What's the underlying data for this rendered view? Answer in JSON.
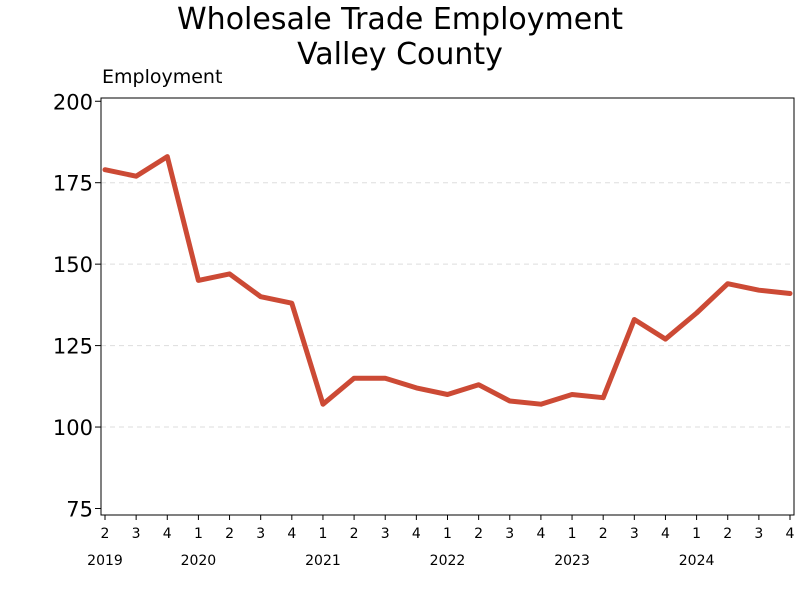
{
  "chart_data": {
    "type": "line",
    "title": "Wholesale Trade Employment",
    "subtitle": "Valley County",
    "ylabel": "Employment",
    "xlabel": "",
    "ylim": [
      73,
      201
    ],
    "yticks": [
      75,
      100,
      125,
      150,
      175,
      200
    ],
    "grid": "horizontal dashed",
    "x": [
      "2019 Q2",
      "2019 Q3",
      "2019 Q4",
      "2020 Q1",
      "2020 Q2",
      "2020 Q3",
      "2020 Q4",
      "2021 Q1",
      "2021 Q2",
      "2021 Q3",
      "2021 Q4",
      "2022 Q1",
      "2022 Q2",
      "2022 Q3",
      "2022 Q4",
      "2023 Q1",
      "2023 Q2",
      "2023 Q3",
      "2023 Q4",
      "2024 Q1",
      "2024 Q2",
      "2024 Q3",
      "2024 Q4"
    ],
    "quarter_labels": [
      "2",
      "3",
      "4",
      "1",
      "2",
      "3",
      "4",
      "1",
      "2",
      "3",
      "4",
      "1",
      "2",
      "3",
      "4",
      "1",
      "2",
      "3",
      "4",
      "1",
      "2",
      "3",
      "4"
    ],
    "year_labels": [
      {
        "label": "2019",
        "quarter_index": 0
      },
      {
        "label": "2020",
        "quarter_index": 3
      },
      {
        "label": "2021",
        "quarter_index": 7
      },
      {
        "label": "2022",
        "quarter_index": 11
      },
      {
        "label": "2023",
        "quarter_index": 15
      },
      {
        "label": "2024",
        "quarter_index": 19
      }
    ],
    "series": [
      {
        "values": [
          179,
          177,
          183,
          145,
          147,
          140,
          138,
          107,
          115,
          115,
          112,
          110,
          113,
          108,
          107,
          110,
          109,
          133,
          127,
          135,
          144,
          142,
          141
        ],
        "color": "#cc4a35"
      }
    ]
  }
}
